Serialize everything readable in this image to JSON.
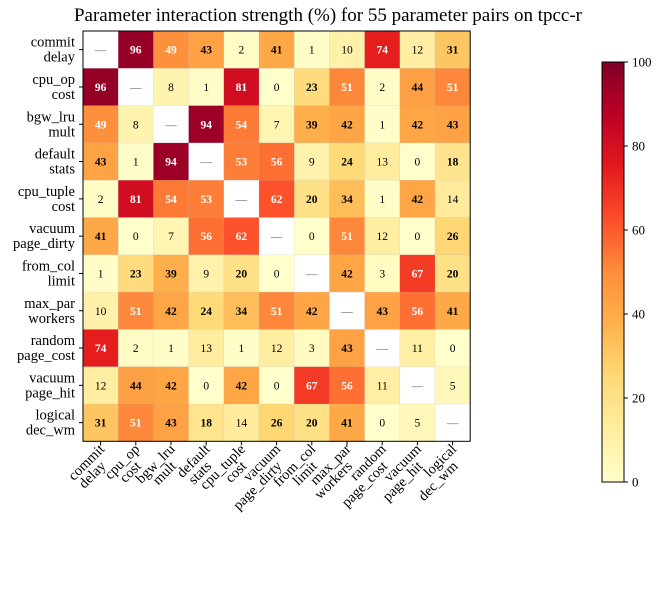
{
  "chart_data": {
    "type": "heatmap",
    "title": "Parameter interaction strength (%) for 55 parameter pairs on tpcc-r",
    "row_labels": [
      [
        "commit",
        "delay"
      ],
      [
        "cpu_op",
        "cost"
      ],
      [
        "bgw_lru",
        "mult"
      ],
      [
        "default",
        "stats"
      ],
      [
        "cpu_tuple",
        "cost"
      ],
      [
        "vacuum",
        "page_dirty"
      ],
      [
        "from_col",
        "limit"
      ],
      [
        "max_par",
        "workers"
      ],
      [
        "random",
        "page_cost"
      ],
      [
        "vacuum",
        "page_hit"
      ],
      [
        "logical",
        "dec_wm"
      ]
    ],
    "col_labels": [
      [
        "commit",
        "delay"
      ],
      [
        "cpu_op",
        "cost"
      ],
      [
        "bgw_lru",
        "mult"
      ],
      [
        "default",
        "stats"
      ],
      [
        "cpu_tuple",
        "cost"
      ],
      [
        "vacuum",
        "page_dirty"
      ],
      [
        "from_col",
        "limit"
      ],
      [
        "max_par",
        "workers"
      ],
      [
        "random",
        "page_cost"
      ],
      [
        "vacuum",
        "page_hit"
      ],
      [
        "logical",
        "dec_wm"
      ]
    ],
    "diagonal_label": "—",
    "values": [
      [
        null,
        96,
        49,
        43,
        2,
        41,
        1,
        10,
        74,
        12,
        31
      ],
      [
        96,
        null,
        8,
        1,
        81,
        0,
        23,
        51,
        2,
        44,
        51
      ],
      [
        49,
        8,
        null,
        94,
        54,
        7,
        39,
        42,
        1,
        42,
        43
      ],
      [
        43,
        1,
        94,
        null,
        53,
        56,
        9,
        24,
        13,
        0,
        18
      ],
      [
        2,
        81,
        54,
        53,
        null,
        62,
        20,
        34,
        1,
        42,
        14
      ],
      [
        41,
        0,
        7,
        56,
        62,
        null,
        0,
        51,
        12,
        0,
        26
      ],
      [
        1,
        23,
        39,
        9,
        20,
        0,
        null,
        42,
        3,
        67,
        20
      ],
      [
        10,
        51,
        42,
        24,
        34,
        51,
        42,
        null,
        43,
        56,
        41
      ],
      [
        74,
        2,
        1,
        13,
        1,
        12,
        3,
        43,
        null,
        11,
        0
      ],
      [
        12,
        44,
        42,
        0,
        42,
        0,
        67,
        56,
        11,
        null,
        5
      ],
      [
        31,
        51,
        43,
        18,
        14,
        26,
        20,
        41,
        0,
        5,
        null
      ]
    ],
    "vmin": 0,
    "vmax": 100,
    "colormap": "YlOrRd",
    "colorbar_ticks": [
      "0",
      "20",
      "40",
      "60",
      "80",
      "100"
    ],
    "colors": {
      "low": "#ffffcc",
      "high": "#800026",
      "diagonal": "#ffffff"
    }
  }
}
